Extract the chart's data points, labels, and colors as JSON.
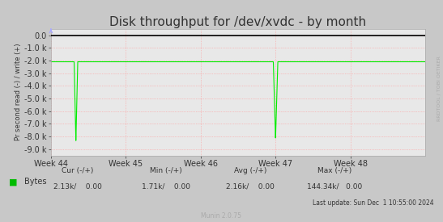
{
  "title": "Disk throughput for /dev/xvdc - by month",
  "ylabel": "Pr second read (-) / write (+)",
  "bg_color": "#c8c8c8",
  "plot_bg_color": "#e8e8e8",
  "grid_color": "#ff9999",
  "border_color": "#aaaaaa",
  "line_color": "#00ee00",
  "ylim": [
    -9500,
    500
  ],
  "yticks": [
    0,
    -1000,
    -2000,
    -3000,
    -4000,
    -5000,
    -6000,
    -7000,
    -8000,
    -9000
  ],
  "ytick_labels": [
    "0.0",
    "-1.0 k",
    "-2.0 k",
    "-3.0 k",
    "-4.0 k",
    "-5.0 k",
    "-6.0 k",
    "-7.0 k",
    "-8.0 k",
    "-9.0 k"
  ],
  "x_weeks": [
    44,
    45,
    46,
    47,
    48
  ],
  "x_week_positions": [
    0,
    168,
    336,
    504,
    672
  ],
  "xlim": [
    0,
    840
  ],
  "spike1_x": 56,
  "spike1_y": -8400,
  "spike2_x": 504,
  "spike2_y": -8200,
  "baseline_y": -2100,
  "title_fontsize": 11,
  "tick_fontsize": 7,
  "legend_label": "Bytes",
  "legend_color": "#00bb00",
  "cur_label": "Cur (-/+)",
  "min_label": "Min (-/+)",
  "avg_label": "Avg (-/+)",
  "max_label": "Max (-/+)",
  "cur_val": "2.13k/    0.00",
  "min_val": "1.71k/    0.00",
  "avg_val": "2.16k/    0.00",
  "max_val": "144.34k/   0.00",
  "last_update": "Last update: Sun Dec  1 10:55:00 2024",
  "munin_label": "Munin 2.0.75",
  "right_label": "RRDTOOL / TOBI OETIKER",
  "arrow_color": "#aaaaff",
  "top_line_color": "#000000",
  "green_line_y": -2100,
  "right_label_color": "#aaaaaa"
}
